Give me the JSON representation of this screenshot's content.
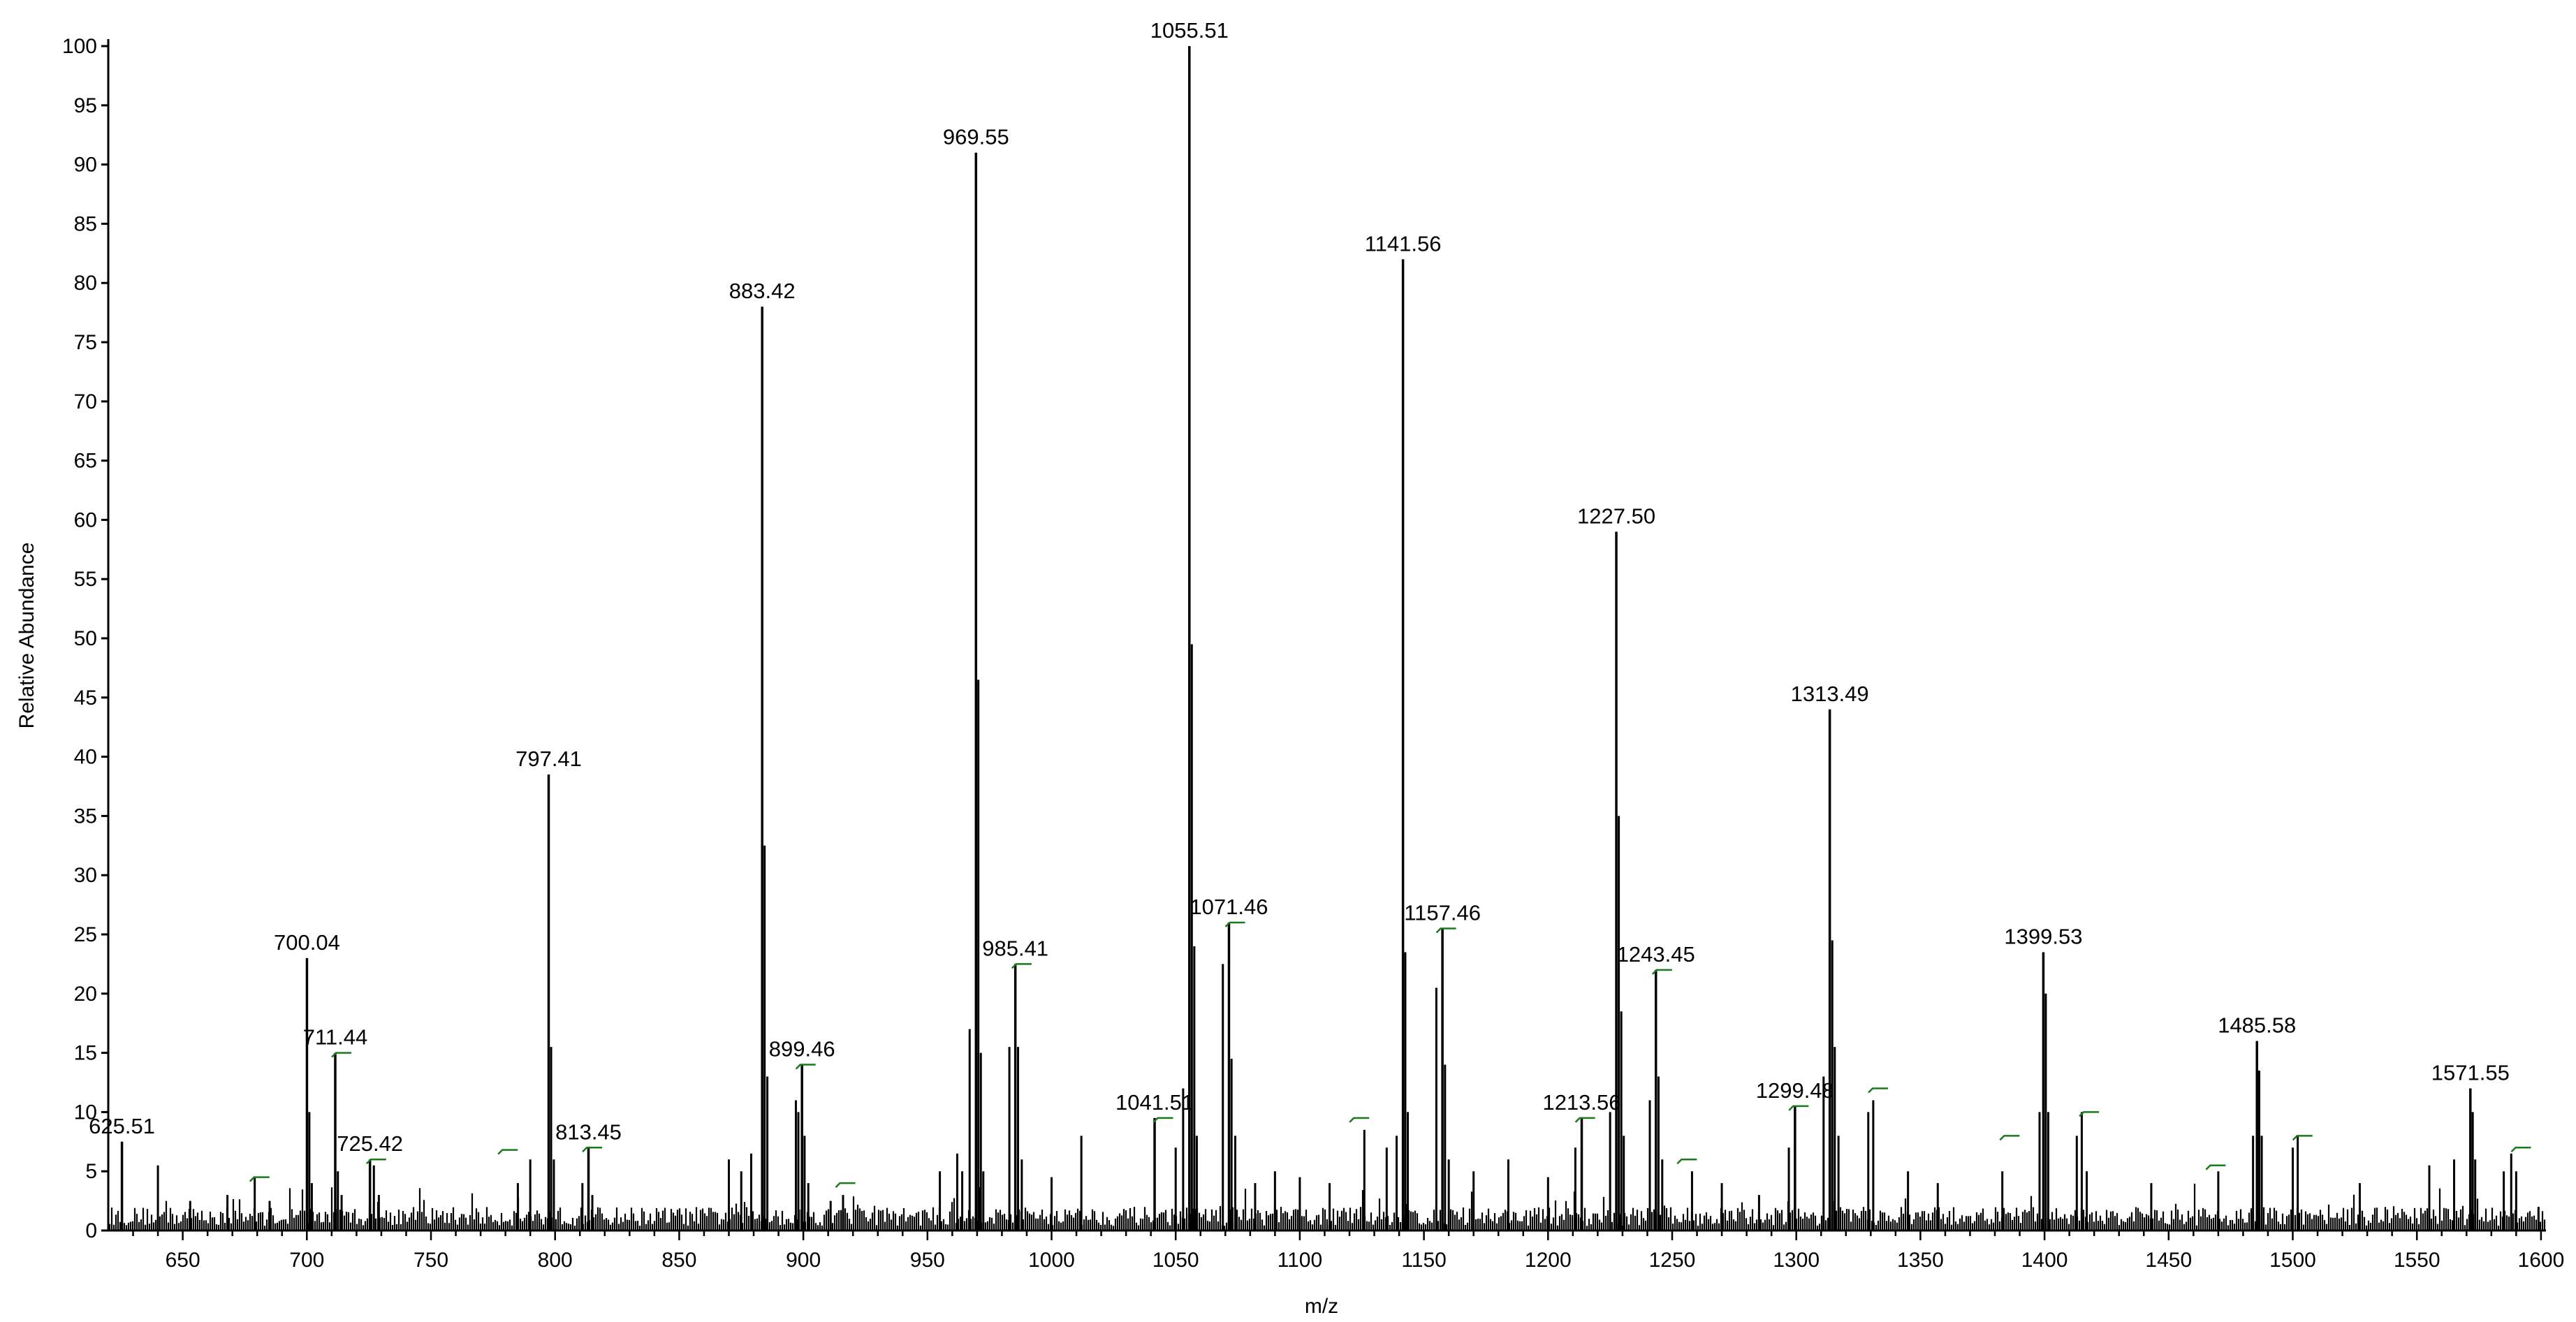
{
  "chart_data": {
    "type": "bar",
    "title": "",
    "xlabel": "m/z",
    "ylabel": "Relative Abundance",
    "xlim": [
      620,
      1602
    ],
    "ylim": [
      0,
      100
    ],
    "xticks": [
      650,
      700,
      750,
      800,
      850,
      900,
      950,
      1000,
      1050,
      1100,
      1150,
      1200,
      1250,
      1300,
      1350,
      1400,
      1450,
      1500,
      1550,
      1600
    ],
    "yticks": [
      0,
      5,
      10,
      15,
      20,
      25,
      30,
      35,
      40,
      45,
      50,
      55,
      60,
      65,
      70,
      75,
      80,
      85,
      90,
      95,
      100
    ],
    "grid": false,
    "line_color": "#000000",
    "marker_color": "#1a7a1a",
    "labeled_peaks": [
      {
        "mz": 625.51,
        "label": "625.51",
        "abundance": 7.5
      },
      {
        "mz": 700.04,
        "label": "700.04",
        "abundance": 23
      },
      {
        "mz": 711.44,
        "label": "711.44",
        "abundance": 15
      },
      {
        "mz": 725.42,
        "label": "725.42",
        "abundance": 6
      },
      {
        "mz": 797.41,
        "label": "797.41",
        "abundance": 38.5
      },
      {
        "mz": 813.45,
        "label": "813.45",
        "abundance": 7
      },
      {
        "mz": 883.42,
        "label": "883.42",
        "abundance": 78
      },
      {
        "mz": 899.46,
        "label": "899.46",
        "abundance": 14
      },
      {
        "mz": 969.55,
        "label": "969.55",
        "abundance": 91
      },
      {
        "mz": 985.41,
        "label": "985.41",
        "abundance": 22.5
      },
      {
        "mz": 1041.51,
        "label": "1041.51",
        "abundance": 9.5
      },
      {
        "mz": 1055.51,
        "label": "1055.51",
        "abundance": 100
      },
      {
        "mz": 1071.46,
        "label": "1071.46",
        "abundance": 26
      },
      {
        "mz": 1141.56,
        "label": "1141.56",
        "abundance": 82
      },
      {
        "mz": 1157.46,
        "label": "1157.46",
        "abundance": 25.5
      },
      {
        "mz": 1213.56,
        "label": "1213.56",
        "abundance": 9.5
      },
      {
        "mz": 1227.5,
        "label": "1227.50",
        "abundance": 59
      },
      {
        "mz": 1243.45,
        "label": "1243.45",
        "abundance": 22
      },
      {
        "mz": 1299.48,
        "label": "1299.48",
        "abundance": 10.5
      },
      {
        "mz": 1313.49,
        "label": "1313.49",
        "abundance": 44
      },
      {
        "mz": 1399.53,
        "label": "1399.53",
        "abundance": 23.5
      },
      {
        "mz": 1485.58,
        "label": "1485.58",
        "abundance": 16
      },
      {
        "mz": 1571.55,
        "label": "1571.55",
        "abundance": 12
      }
    ],
    "other_peaks": [
      {
        "mz": 640,
        "abundance": 5.5
      },
      {
        "mz": 653,
        "abundance": 2.5
      },
      {
        "mz": 668,
        "abundance": 3
      },
      {
        "mz": 679,
        "abundance": 4.5
      },
      {
        "mz": 685,
        "abundance": 2.5
      },
      {
        "mz": 701,
        "abundance": 10
      },
      {
        "mz": 702,
        "abundance": 4
      },
      {
        "mz": 712.5,
        "abundance": 5
      },
      {
        "mz": 714,
        "abundance": 3
      },
      {
        "mz": 727,
        "abundance": 5.5
      },
      {
        "mz": 729,
        "abundance": 3
      },
      {
        "mz": 785,
        "abundance": 4
      },
      {
        "mz": 790,
        "abundance": 6
      },
      {
        "mz": 798.4,
        "abundance": 15.5
      },
      {
        "mz": 799.5,
        "abundance": 6
      },
      {
        "mz": 811,
        "abundance": 4
      },
      {
        "mz": 815,
        "abundance": 3
      },
      {
        "mz": 870,
        "abundance": 6
      },
      {
        "mz": 875,
        "abundance": 5
      },
      {
        "mz": 879,
        "abundance": 6.5
      },
      {
        "mz": 884.4,
        "abundance": 32.5
      },
      {
        "mz": 885.5,
        "abundance": 13
      },
      {
        "mz": 897,
        "abundance": 11
      },
      {
        "mz": 898,
        "abundance": 10
      },
      {
        "mz": 900.5,
        "abundance": 8
      },
      {
        "mz": 902,
        "abundance": 4
      },
      {
        "mz": 911,
        "abundance": 2.5
      },
      {
        "mz": 916,
        "abundance": 3
      },
      {
        "mz": 955,
        "abundance": 5
      },
      {
        "mz": 962,
        "abundance": 6.5
      },
      {
        "mz": 964,
        "abundance": 5
      },
      {
        "mz": 967,
        "abundance": 17
      },
      {
        "mz": 970.5,
        "abundance": 46.5
      },
      {
        "mz": 971.5,
        "abundance": 15
      },
      {
        "mz": 972.5,
        "abundance": 5
      },
      {
        "mz": 983,
        "abundance": 15.5
      },
      {
        "mz": 986.5,
        "abundance": 15.5
      },
      {
        "mz": 988,
        "abundance": 6
      },
      {
        "mz": 1000,
        "abundance": 4.5
      },
      {
        "mz": 1012,
        "abundance": 8
      },
      {
        "mz": 1050,
        "abundance": 7
      },
      {
        "mz": 1053,
        "abundance": 12
      },
      {
        "mz": 1056.5,
        "abundance": 49.5
      },
      {
        "mz": 1057.5,
        "abundance": 24
      },
      {
        "mz": 1058.5,
        "abundance": 8
      },
      {
        "mz": 1069,
        "abundance": 22.5
      },
      {
        "mz": 1072.5,
        "abundance": 14.5
      },
      {
        "mz": 1074,
        "abundance": 8
      },
      {
        "mz": 1082,
        "abundance": 4
      },
      {
        "mz": 1090,
        "abundance": 5
      },
      {
        "mz": 1100,
        "abundance": 4.5
      },
      {
        "mz": 1112,
        "abundance": 4
      },
      {
        "mz": 1126,
        "abundance": 8.5
      },
      {
        "mz": 1135,
        "abundance": 7
      },
      {
        "mz": 1139,
        "abundance": 8
      },
      {
        "mz": 1142.5,
        "abundance": 23.5
      },
      {
        "mz": 1143.5,
        "abundance": 10
      },
      {
        "mz": 1155,
        "abundance": 20.5
      },
      {
        "mz": 1158.5,
        "abundance": 14
      },
      {
        "mz": 1160,
        "abundance": 6
      },
      {
        "mz": 1170,
        "abundance": 5
      },
      {
        "mz": 1184,
        "abundance": 6
      },
      {
        "mz": 1200,
        "abundance": 4.5
      },
      {
        "mz": 1211,
        "abundance": 7
      },
      {
        "mz": 1225,
        "abundance": 10
      },
      {
        "mz": 1228.5,
        "abundance": 35
      },
      {
        "mz": 1229.5,
        "abundance": 18.5
      },
      {
        "mz": 1230.5,
        "abundance": 8
      },
      {
        "mz": 1241,
        "abundance": 11
      },
      {
        "mz": 1244.5,
        "abundance": 13
      },
      {
        "mz": 1246,
        "abundance": 6
      },
      {
        "mz": 1258,
        "abundance": 5
      },
      {
        "mz": 1270,
        "abundance": 4
      },
      {
        "mz": 1285,
        "abundance": 3
      },
      {
        "mz": 1297,
        "abundance": 7
      },
      {
        "mz": 1311,
        "abundance": 13
      },
      {
        "mz": 1314.5,
        "abundance": 24.5
      },
      {
        "mz": 1315.5,
        "abundance": 15.5
      },
      {
        "mz": 1317,
        "abundance": 8
      },
      {
        "mz": 1329,
        "abundance": 10
      },
      {
        "mz": 1331,
        "abundance": 11
      },
      {
        "mz": 1345,
        "abundance": 5
      },
      {
        "mz": 1357,
        "abundance": 4
      },
      {
        "mz": 1383,
        "abundance": 5
      },
      {
        "mz": 1398,
        "abundance": 10
      },
      {
        "mz": 1400.5,
        "abundance": 20
      },
      {
        "mz": 1401.5,
        "abundance": 10
      },
      {
        "mz": 1413,
        "abundance": 8
      },
      {
        "mz": 1415,
        "abundance": 10
      },
      {
        "mz": 1417,
        "abundance": 5
      },
      {
        "mz": 1443,
        "abundance": 4
      },
      {
        "mz": 1470,
        "abundance": 5
      },
      {
        "mz": 1484,
        "abundance": 8
      },
      {
        "mz": 1486.5,
        "abundance": 13.5
      },
      {
        "mz": 1487.5,
        "abundance": 8
      },
      {
        "mz": 1500,
        "abundance": 7
      },
      {
        "mz": 1502,
        "abundance": 8
      },
      {
        "mz": 1527,
        "abundance": 4
      },
      {
        "mz": 1555,
        "abundance": 5.5
      },
      {
        "mz": 1565,
        "abundance": 6
      },
      {
        "mz": 1572.5,
        "abundance": 10
      },
      {
        "mz": 1573.5,
        "abundance": 6
      },
      {
        "mz": 1585,
        "abundance": 5
      },
      {
        "mz": 1588,
        "abundance": 6.5
      },
      {
        "mz": 1590,
        "abundance": 5
      },
      {
        "mz": 1599,
        "abundance": 2
      }
    ],
    "isotope_markers": [
      {
        "mz": 681,
        "abundance": 4.5
      },
      {
        "mz": 714,
        "abundance": 15
      },
      {
        "mz": 728,
        "abundance": 6
      },
      {
        "mz": 781,
        "abundance": 6.8
      },
      {
        "mz": 815,
        "abundance": 7
      },
      {
        "mz": 901,
        "abundance": 14
      },
      {
        "mz": 917,
        "abundance": 4
      },
      {
        "mz": 988,
        "abundance": 22.5
      },
      {
        "mz": 1045,
        "abundance": 9.5
      },
      {
        "mz": 1074,
        "abundance": 26
      },
      {
        "mz": 1124,
        "abundance": 9.5
      },
      {
        "mz": 1159,
        "abundance": 25.5
      },
      {
        "mz": 1215,
        "abundance": 9.5
      },
      {
        "mz": 1246,
        "abundance": 22
      },
      {
        "mz": 1256,
        "abundance": 6
      },
      {
        "mz": 1301,
        "abundance": 10.5
      },
      {
        "mz": 1333,
        "abundance": 12
      },
      {
        "mz": 1386,
        "abundance": 8
      },
      {
        "mz": 1418,
        "abundance": 10
      },
      {
        "mz": 1469,
        "abundance": 5.5
      },
      {
        "mz": 1504,
        "abundance": 8
      },
      {
        "mz": 1592,
        "abundance": 7
      }
    ]
  }
}
